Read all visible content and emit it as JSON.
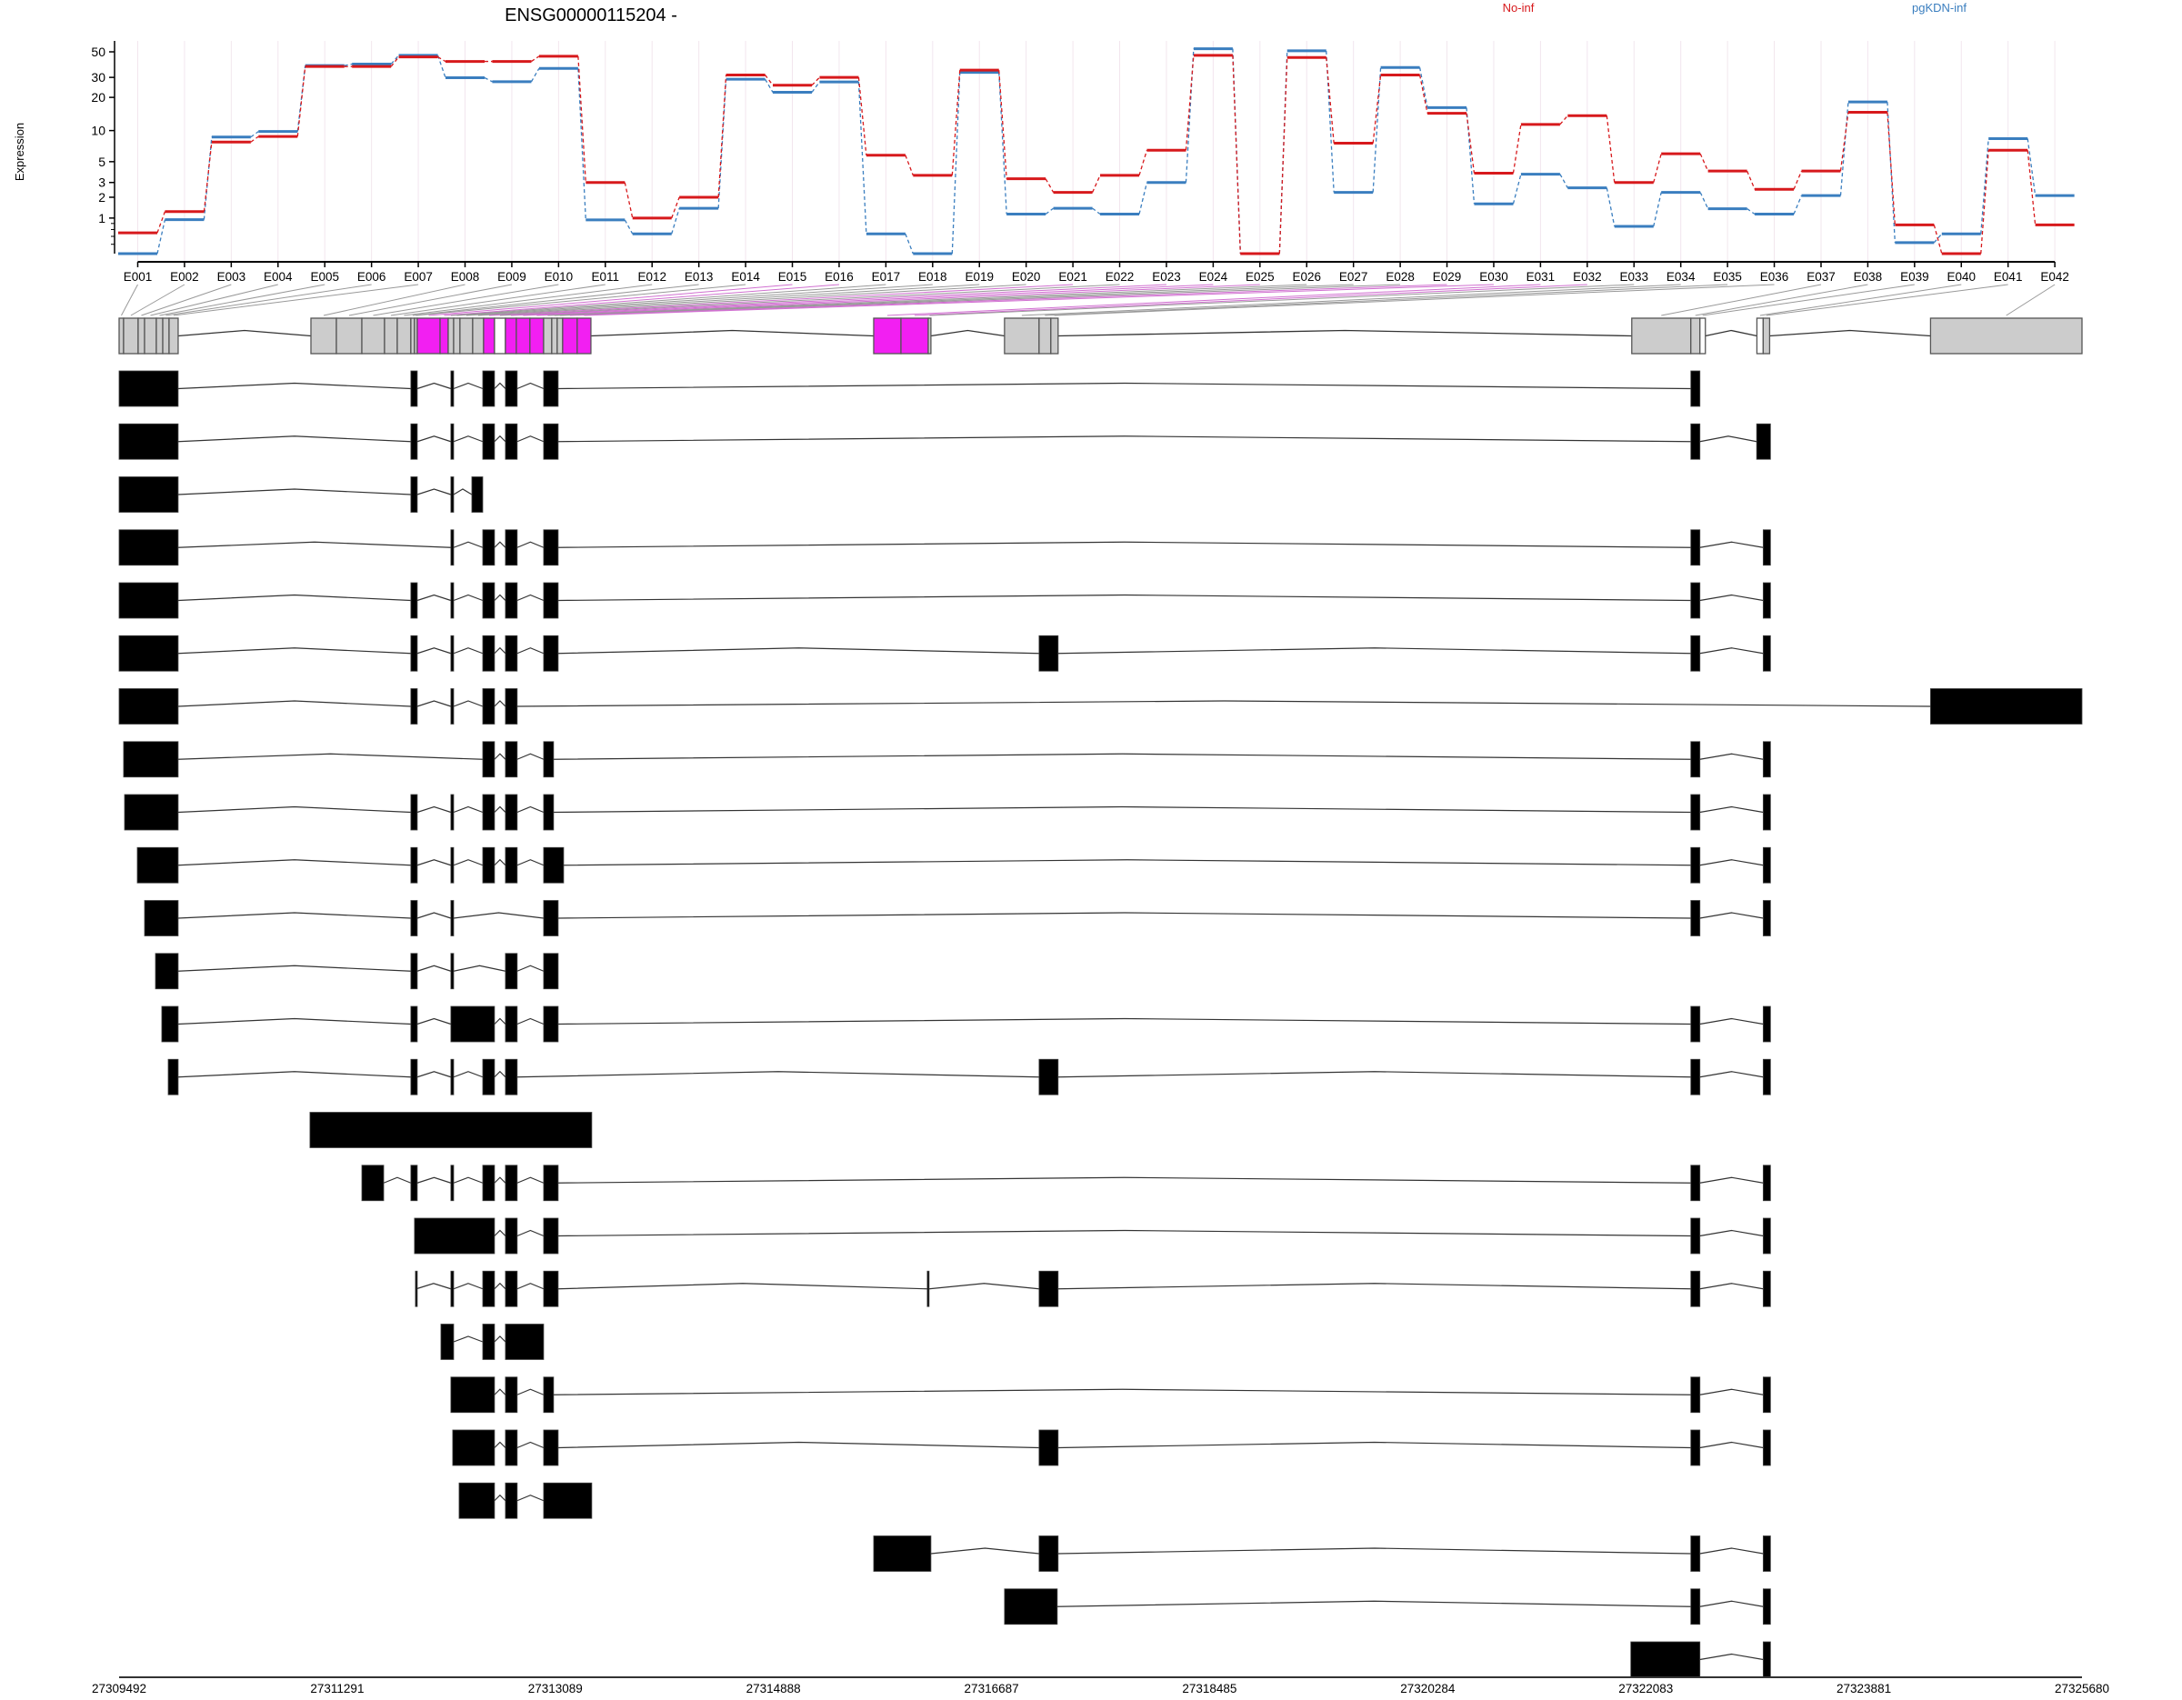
{
  "title": "ENSG00000115204 -",
  "legend": [
    {
      "label": "No-inf",
      "color": "#d7191c"
    },
    {
      "label": "pgKDN-inf",
      "color": "#3a7ebf"
    }
  ],
  "colors": {
    "significant": "#f21ff2",
    "bin": "#cccccc",
    "exon": "#000000",
    "grid": "#f2e6ee"
  },
  "chart_data": {
    "type": "line",
    "title": "ENSG00000115204 -",
    "ylabel": "Expression",
    "yscale": "log10(y+1)",
    "ylim": [
      0,
      55
    ],
    "yticks": [
      1,
      2,
      3,
      5,
      10,
      20,
      30,
      50
    ],
    "grid": true,
    "legend_placement": "top-right",
    "categories": [
      "E001",
      "E002",
      "E003",
      "E004",
      "E005",
      "E006",
      "E007",
      "E008",
      "E009",
      "E010",
      "E011",
      "E012",
      "E013",
      "E014",
      "E015",
      "E016",
      "E017",
      "E018",
      "E019",
      "E020",
      "E021",
      "E022",
      "E023",
      "E024",
      "E025",
      "E026",
      "E027",
      "E028",
      "E029",
      "E030",
      "E031",
      "E032",
      "E033",
      "E034",
      "E035",
      "E036",
      "E037",
      "E038",
      "E039",
      "E040",
      "E041",
      "E042"
    ],
    "series": [
      {
        "name": "pgKDN-inf",
        "color": "#3a7ebf",
        "values": [
          0,
          0.94,
          8.7,
          9.8,
          38,
          39.2,
          46.6,
          29.8,
          27.5,
          35.9,
          0.93,
          0.47,
          1.42,
          28.9,
          22.2,
          27.4,
          0.47,
          0,
          33.2,
          1.16,
          1.42,
          1.16,
          3.0,
          53.2,
          0,
          51,
          2.3,
          36.6,
          16.2,
          1.64,
          3.7,
          2.6,
          0.7,
          2.3,
          1.4,
          1.16,
          2.1,
          18.2,
          0.24,
          0.47,
          8.4,
          2.1
        ]
      },
      {
        "name": "No-inf",
        "color": "#d7191c",
        "values": [
          0.5,
          1.27,
          7.8,
          8.8,
          37.3,
          37.3,
          45.2,
          41.3,
          41.3,
          45.8,
          3.0,
          1.0,
          2.0,
          31.5,
          25.6,
          30,
          5.8,
          3.6,
          34.7,
          3.3,
          2.3,
          3.6,
          6.5,
          46.6,
          0,
          44.7,
          7.6,
          31.5,
          14.4,
          3.8,
          11.4,
          13.7,
          3.0,
          6.0,
          4.0,
          2.5,
          4.0,
          14.7,
          0.75,
          0,
          6.5,
          0.75
        ]
      }
    ],
    "genomic_axis": {
      "range": [
        27309492,
        27325680
      ],
      "ticks": [
        "27309492",
        "27311291",
        "27313089",
        "27314888",
        "27316687",
        "27318485",
        "27320284",
        "27322083",
        "27323881",
        "27325680"
      ]
    },
    "exon_bins": [
      {
        "id": "E001",
        "start": 27309492,
        "end": 27309529,
        "status": "normal"
      },
      {
        "id": "E002",
        "start": 27309529,
        "end": 27309649,
        "status": "normal"
      },
      {
        "id": "E003",
        "start": 27309649,
        "end": 27309702,
        "status": "normal"
      },
      {
        "id": "E004",
        "start": 27309702,
        "end": 27309799,
        "status": "normal"
      },
      {
        "id": "E005",
        "start": 27309799,
        "end": 27309852,
        "status": "normal"
      },
      {
        "id": "E006",
        "start": 27309852,
        "end": 27309904,
        "status": "normal"
      },
      {
        "id": "E007",
        "start": 27309904,
        "end": 27309979,
        "status": "normal"
      },
      {
        "id": "E008",
        "start": 27311074,
        "end": 27311284,
        "status": "normal"
      },
      {
        "id": "E009",
        "start": 27311284,
        "end": 27311494,
        "status": "normal"
      },
      {
        "id": "E010",
        "start": 27311494,
        "end": 27311681,
        "status": "normal"
      },
      {
        "id": "E011",
        "start": 27311681,
        "end": 27311786,
        "status": "normal"
      },
      {
        "id": "E012",
        "start": 27311786,
        "end": 27311898,
        "status": "normal"
      },
      {
        "id": "E013",
        "start": 27311898,
        "end": 27311928,
        "status": "normal"
      },
      {
        "id": "E014",
        "start": 27311928,
        "end": 27311951,
        "status": "normal"
      },
      {
        "id": "E015",
        "start": 27311951,
        "end": 27312139,
        "status": "significant"
      },
      {
        "id": "E016",
        "start": 27312139,
        "end": 27312206,
        "status": "significant"
      },
      {
        "id": "E017",
        "start": 27312206,
        "end": 27312251,
        "status": "normal"
      },
      {
        "id": "E018",
        "start": 27312251,
        "end": 27312303,
        "status": "normal"
      },
      {
        "id": "E019",
        "start": 27312303,
        "end": 27312408,
        "status": "normal"
      },
      {
        "id": "E020",
        "start": 27312408,
        "end": 27312498,
        "status": "normal"
      },
      {
        "id": "E021",
        "start": 27312498,
        "end": 27312588,
        "status": "significant"
      },
      {
        "id": "E022",
        "start": 27312588,
        "end": 27312678,
        "status": "empty"
      },
      {
        "id": "E023",
        "start": 27312678,
        "end": 27312768,
        "status": "significant"
      },
      {
        "id": "E024",
        "start": 27312768,
        "end": 27312880,
        "status": "significant"
      },
      {
        "id": "E025",
        "start": 27312880,
        "end": 27312993,
        "status": "significant"
      },
      {
        "id": "E026",
        "start": 27312993,
        "end": 27313060,
        "status": "normal"
      },
      {
        "id": "E027",
        "start": 27313060,
        "end": 27313105,
        "status": "normal"
      },
      {
        "id": "E028",
        "start": 27313105,
        "end": 27313150,
        "status": "normal"
      },
      {
        "id": "E029",
        "start": 27313150,
        "end": 27313270,
        "status": "significant"
      },
      {
        "id": "E030",
        "start": 27313270,
        "end": 27313383,
        "status": "significant"
      },
      {
        "id": "E031",
        "start": 27315715,
        "end": 27315940,
        "status": "significant"
      },
      {
        "id": "E032",
        "start": 27315940,
        "end": 27316165,
        "status": "significant"
      },
      {
        "id": "E033",
        "start": 27316165,
        "end": 27316187,
        "status": "normal"
      },
      {
        "id": "E034",
        "start": 27316794,
        "end": 27317079,
        "status": "normal"
      },
      {
        "id": "E035",
        "start": 27317079,
        "end": 27317176,
        "status": "normal"
      },
      {
        "id": "E036",
        "start": 27317176,
        "end": 27317236,
        "status": "normal"
      },
      {
        "id": "E037",
        "start": 27321967,
        "end": 27322454,
        "status": "normal"
      },
      {
        "id": "E038",
        "start": 27322454,
        "end": 27322529,
        "status": "normal"
      },
      {
        "id": "E039",
        "start": 27322529,
        "end": 27322574,
        "status": "empty"
      },
      {
        "id": "E040",
        "start": 27322999,
        "end": 27323051,
        "status": "empty"
      },
      {
        "id": "E041",
        "start": 27323051,
        "end": 27323104,
        "status": "normal"
      },
      {
        "id": "E042",
        "start": 27324431,
        "end": 27325680,
        "status": "normal"
      }
    ],
    "transcripts": [
      [
        [
          27309492,
          27309979
        ],
        [
          27311898,
          27311951
        ],
        [
          27312228,
          27312251
        ],
        [
          27312491,
          27312588
        ],
        [
          27312678,
          27312775
        ],
        [
          27312993,
          27313113
        ],
        [
          27322454,
          27322529
        ]
      ],
      [
        [
          27309492,
          27309979
        ],
        [
          27311898,
          27311951
        ],
        [
          27312228,
          27312251
        ],
        [
          27312491,
          27312588
        ],
        [
          27312678,
          27312775
        ],
        [
          27312993,
          27313113
        ],
        [
          27322454,
          27322529
        ],
        [
          27322997,
          27323111
        ]
      ],
      [
        [
          27309492,
          27309979
        ],
        [
          27311898,
          27311951
        ],
        [
          27312228,
          27312251
        ],
        [
          27312401,
          27312491
        ]
      ],
      [
        [
          27309492,
          27309979
        ],
        [
          27312228,
          27312251
        ],
        [
          27312491,
          27312588
        ],
        [
          27312678,
          27312775
        ],
        [
          27312993,
          27313113
        ],
        [
          27322454,
          27322529
        ],
        [
          27323051,
          27323111
        ]
      ],
      [
        [
          27309492,
          27309979
        ],
        [
          27311898,
          27311951
        ],
        [
          27312228,
          27312251
        ],
        [
          27312491,
          27312588
        ],
        [
          27312678,
          27312775
        ],
        [
          27312993,
          27313113
        ],
        [
          27322454,
          27322529
        ],
        [
          27323051,
          27323111
        ]
      ],
      [
        [
          27309492,
          27309979
        ],
        [
          27311898,
          27311951
        ],
        [
          27312228,
          27312251
        ],
        [
          27312491,
          27312588
        ],
        [
          27312678,
          27312775
        ],
        [
          27312993,
          27313113
        ],
        [
          27317079,
          27317236
        ],
        [
          27322454,
          27322529
        ],
        [
          27323051,
          27323111
        ]
      ],
      [
        [
          27309492,
          27309979
        ],
        [
          27311898,
          27311951
        ],
        [
          27312228,
          27312251
        ],
        [
          27312491,
          27312588
        ],
        [
          27312678,
          27312775
        ],
        [
          27324431,
          27325680
        ]
      ],
      [
        [
          27309529,
          27309979
        ],
        [
          27312491,
          27312588
        ],
        [
          27312678,
          27312775
        ],
        [
          27312993,
          27313075
        ],
        [
          27322454,
          27322529
        ],
        [
          27323051,
          27323111
        ]
      ],
      [
        [
          27309537,
          27309979
        ],
        [
          27311898,
          27311951
        ],
        [
          27312228,
          27312251
        ],
        [
          27312491,
          27312588
        ],
        [
          27312678,
          27312775
        ],
        [
          27312993,
          27313075
        ],
        [
          27322454,
          27322529
        ],
        [
          27323051,
          27323111
        ]
      ],
      [
        [
          27309642,
          27309979
        ],
        [
          27311898,
          27311951
        ],
        [
          27312228,
          27312251
        ],
        [
          27312491,
          27312588
        ],
        [
          27312678,
          27312775
        ],
        [
          27312993,
          27313158
        ],
        [
          27322454,
          27322529
        ],
        [
          27323051,
          27323111
        ]
      ],
      [
        [
          27309702,
          27309979
        ],
        [
          27311898,
          27311951
        ],
        [
          27312228,
          27312251
        ],
        [
          27312993,
          27313113
        ],
        [
          27322454,
          27322529
        ],
        [
          27323051,
          27323111
        ]
      ],
      [
        [
          27309792,
          27309979
        ],
        [
          27311898,
          27311951
        ],
        [
          27312228,
          27312251
        ],
        [
          27312678,
          27312775
        ],
        [
          27312993,
          27313113
        ]
      ],
      [
        [
          27309844,
          27309979
        ],
        [
          27311898,
          27311951
        ],
        [
          27312228,
          27312588
        ],
        [
          27312678,
          27312775
        ],
        [
          27312993,
          27313113
        ],
        [
          27322454,
          27322529
        ],
        [
          27323051,
          27323111
        ]
      ],
      [
        [
          27309897,
          27309979
        ],
        [
          27311898,
          27311951
        ],
        [
          27312228,
          27312251
        ],
        [
          27312491,
          27312588
        ],
        [
          27312678,
          27312775
        ],
        [
          27317079,
          27317236
        ],
        [
          27322454,
          27322529
        ],
        [
          27323051,
          27323111
        ]
      ],
      [
        [
          27311066,
          27313390
        ]
      ],
      [
        [
          27311494,
          27311674
        ],
        [
          27311898,
          27311951
        ],
        [
          27312228,
          27312251
        ],
        [
          27312491,
          27312588
        ],
        [
          27312678,
          27312775
        ],
        [
          27312993,
          27313113
        ],
        [
          27322454,
          27322529
        ],
        [
          27323051,
          27323111
        ]
      ],
      [
        [
          27311928,
          27312588
        ],
        [
          27312678,
          27312775
        ],
        [
          27312993,
          27313113
        ],
        [
          27322454,
          27322529
        ],
        [
          27323051,
          27323111
        ]
      ],
      [
        [
          27311936,
          27311943
        ],
        [
          27312228,
          27312251
        ],
        [
          27312491,
          27312588
        ],
        [
          27312678,
          27312775
        ],
        [
          27312993,
          27313113
        ],
        [
          27316157,
          27316172
        ],
        [
          27317079,
          27317236
        ],
        [
          27322454,
          27322529
        ],
        [
          27323051,
          27323111
        ]
      ],
      [
        [
          27312146,
          27312251
        ],
        [
          27312491,
          27312588
        ],
        [
          27312678,
          27312993
        ]
      ],
      [
        [
          27312228,
          27312588
        ],
        [
          27312678,
          27312775
        ],
        [
          27312993,
          27313075
        ],
        [
          27322454,
          27322529
        ],
        [
          27323051,
          27323111
        ]
      ],
      [
        [
          27312243,
          27312588
        ],
        [
          27312678,
          27312775
        ],
        [
          27312993,
          27313113
        ],
        [
          27317079,
          27317236
        ],
        [
          27322454,
          27322529
        ],
        [
          27323051,
          27323111
        ]
      ],
      [
        [
          27312296,
          27312588
        ],
        [
          27312678,
          27312775
        ],
        [
          27312993,
          27313390
        ]
      ],
      [
        [
          27315715,
          27316187
        ],
        [
          27317079,
          27317236
        ],
        [
          27322454,
          27322529
        ],
        [
          27323051,
          27323111
        ]
      ],
      [
        [
          27316794,
          27317229
        ],
        [
          27322454,
          27322529
        ],
        [
          27323051,
          27323111
        ]
      ],
      [
        [
          27321959,
          27322529
        ],
        [
          27323051,
          27323111
        ]
      ]
    ]
  }
}
